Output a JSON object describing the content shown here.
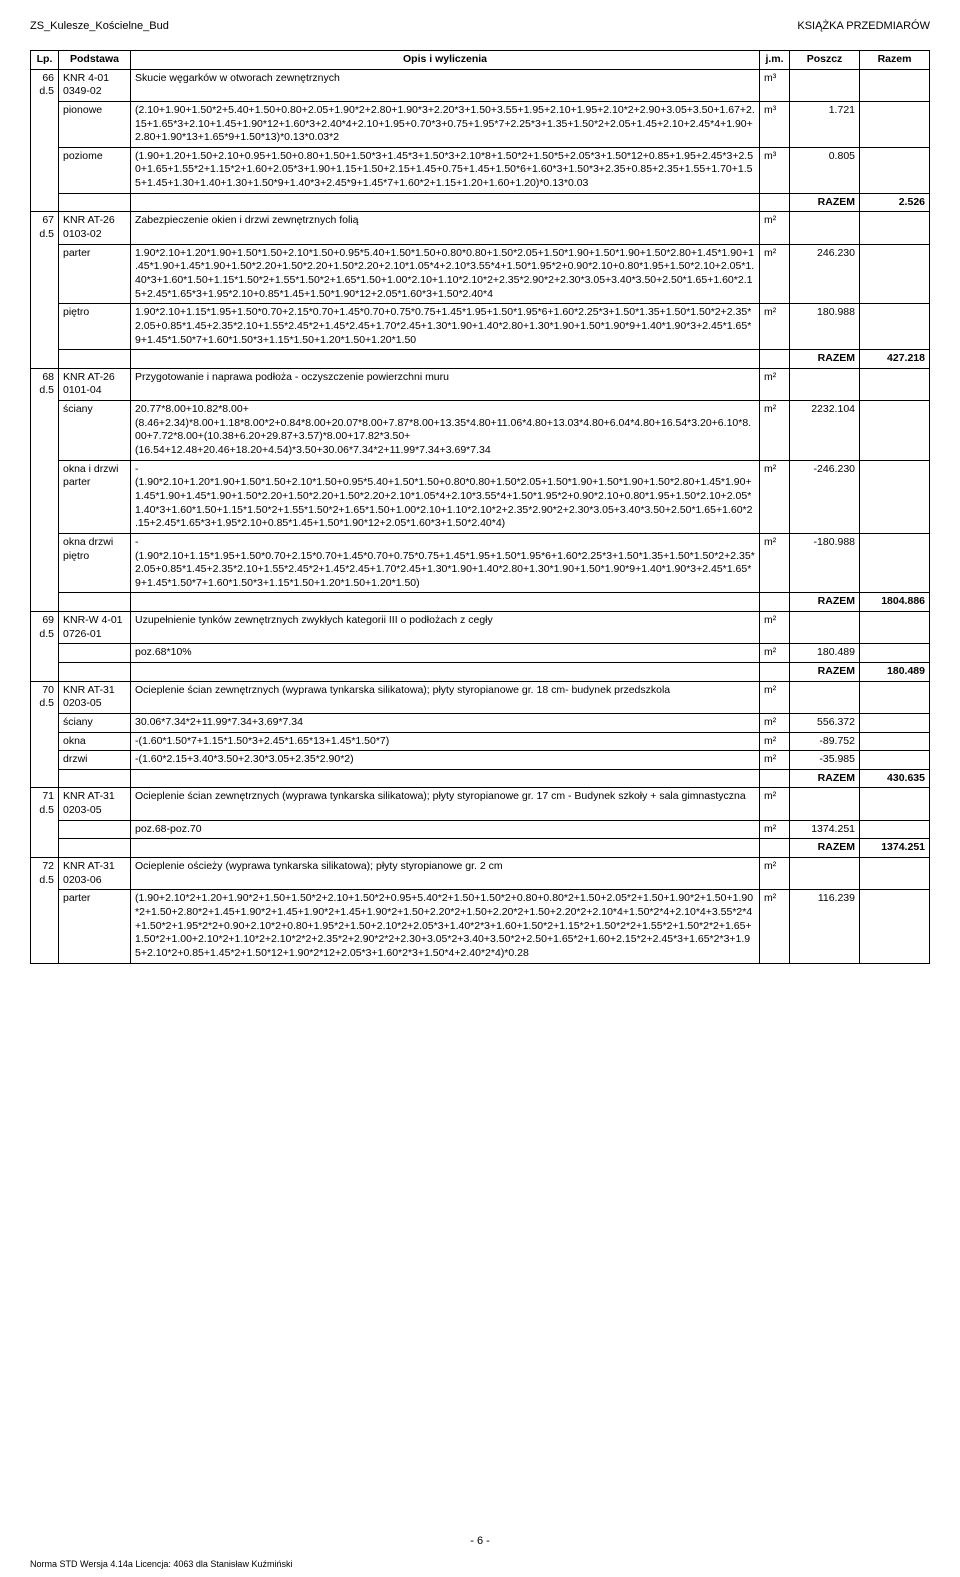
{
  "header": {
    "left": "ZS_Kulesze_Kościelne_Bud",
    "right": "KSIĄŻKA PRZEDMIARÓW"
  },
  "columns": {
    "lp": "Lp.",
    "podstawa": "Podstawa",
    "opis": "Opis i wyliczenia",
    "jm": "j.m.",
    "poszcz": "Poszcz",
    "razem": "Razem"
  },
  "rows": [
    {
      "lp": "66\nd.5",
      "podstawa": "KNR 4-01\n0349-02",
      "items": [
        {
          "label": "",
          "text": "Skucie węgarków w otworach zewnętrznych",
          "jm": "m³",
          "poszcz": "",
          "razem": ""
        },
        {
          "label": "pionowe",
          "text": "(2.10+1.90+1.50*2+5.40+1.50+0.80+2.05+1.90*2+2.80+1.90*3+2.20*3+1.50+3.55+1.95+2.10+1.95+2.10*2+2.90+3.05+3.50+1.67+2.15+1.65*3+2.10+1.45+1.90*12+1.60*3+2.40*4+2.10+1.95+0.70*3+0.75+1.95*7+2.25*3+1.35+1.50*2+2.05+1.45+2.10+2.45*4+1.90+2.80+1.90*13+1.65*9+1.50*13)*0.13*0.03*2",
          "jm": "m³",
          "poszcz": "1.721",
          "razem": ""
        },
        {
          "label": "poziome",
          "text": "(1.90+1.20+1.50+2.10+0.95+1.50+0.80+1.50+1.50*3+1.45*3+1.50*3+2.10*8+1.50*2+1.50*5+2.05*3+1.50*12+0.85+1.95+2.45*3+2.50+1.65+1.55*2+1.15*2+1.60+2.05*3+1.90+1.15+1.50+2.15+1.45+0.75+1.45+1.50*6+1.60*3+1.50*3+2.35+0.85+2.35+1.55+1.70+1.55+1.45+1.30+1.40+1.30+1.50*9+1.40*3+2.45*9+1.45*7+1.60*2+1.15+1.20+1.60+1.20)*0.13*0.03",
          "jm": "m³",
          "poszcz": "0.805",
          "razem": ""
        }
      ],
      "razem_label": "RAZEM",
      "razem_value": "2.526"
    },
    {
      "lp": "67\nd.5",
      "podstawa": "KNR AT-26\n0103-02",
      "items": [
        {
          "label": "",
          "text": "Zabezpieczenie okien i drzwi zewnętrznych folią",
          "jm": "m²",
          "poszcz": "",
          "razem": ""
        },
        {
          "label": "parter",
          "text": "1.90*2.10+1.20*1.90+1.50*1.50+2.10*1.50+0.95*5.40+1.50*1.50+0.80*0.80+1.50*2.05+1.50*1.90+1.50*1.90+1.50*2.80+1.45*1.90+1.45*1.90+1.45*1.90+1.50*2.20+1.50*2.20+1.50*2.20+2.10*1.05*4+2.10*3.55*4+1.50*1.95*2+0.90*2.10+0.80*1.95+1.50*2.10+2.05*1.40*3+1.60*1.50+1.15*1.50*2+1.55*1.50*2+1.65*1.50+1.00*2.10+1.10*2.10*2+2.35*2.90*2+2.30*3.05+3.40*3.50+2.50*1.65+1.60*2.15+2.45*1.65*3+1.95*2.10+0.85*1.45+1.50*1.90*12+2.05*1.60*3+1.50*2.40*4",
          "jm": "m²",
          "poszcz": "246.230",
          "razem": ""
        },
        {
          "label": "piętro",
          "text": "1.90*2.10+1.15*1.95+1.50*0.70+2.15*0.70+1.45*0.70+0.75*0.75+1.45*1.95+1.50*1.95*6+1.60*2.25*3+1.50*1.35+1.50*1.50*2+2.35*2.05+0.85*1.45+2.35*2.10+1.55*2.45*2+1.45*2.45+1.70*2.45+1.30*1.90+1.40*2.80+1.30*1.90+1.50*1.90*9+1.40*1.90*3+2.45*1.65*9+1.45*1.50*7+1.60*1.50*3+1.15*1.50+1.20*1.50+1.20*1.50",
          "jm": "m²",
          "poszcz": "180.988",
          "razem": ""
        }
      ],
      "razem_label": "RAZEM",
      "razem_value": "427.218"
    },
    {
      "lp": "68\nd.5",
      "podstawa": "KNR AT-26\n0101-04",
      "items": [
        {
          "label": "",
          "text": "Przygotowanie i naprawa podłoża - oczyszczenie powierzchni muru",
          "jm": "m²",
          "poszcz": "",
          "razem": ""
        },
        {
          "label": "ściany",
          "text": "20.77*8.00+10.82*8.00+(8.46+2.34)*8.00+1.18*8.00*2+0.84*8.00+20.07*8.00+7.87*8.00+13.35*4.80+11.06*4.80+13.03*4.80+6.04*4.80+16.54*3.20+6.10*8.00+7.72*8.00+(10.38+6.20+29.87+3.57)*8.00+17.82*3.50+(16.54+12.48+20.46+18.20+4.54)*3.50+30.06*7.34*2+11.99*7.34+3.69*7.34",
          "jm": "m²",
          "poszcz": "2232.104",
          "razem": ""
        },
        {
          "label": "okna i drzwi parter",
          "text": "-(1.90*2.10+1.20*1.90+1.50*1.50+2.10*1.50+0.95*5.40+1.50*1.50+0.80*0.80+1.50*2.05+1.50*1.90+1.50*1.90+1.50*2.80+1.45*1.90+1.45*1.90+1.45*1.90+1.50*2.20+1.50*2.20+1.50*2.20+2.10*1.05*4+2.10*3.55*4+1.50*1.95*2+0.90*2.10+0.80*1.95+1.50*2.10+2.05*1.40*3+1.60*1.50+1.15*1.50*2+1.55*1.50*2+1.65*1.50+1.00*2.10+1.10*2.10*2+2.35*2.90*2+2.30*3.05+3.40*3.50+2.50*1.65+1.60*2.15+2.45*1.65*3+1.95*2.10+0.85*1.45+1.50*1.90*12+2.05*1.60*3+1.50*2.40*4)",
          "jm": "m²",
          "poszcz": "-246.230",
          "razem": ""
        },
        {
          "label": "okna drzwi piętro",
          "text": "-(1.90*2.10+1.15*1.95+1.50*0.70+2.15*0.70+1.45*0.70+0.75*0.75+1.45*1.95+1.50*1.95*6+1.60*2.25*3+1.50*1.35+1.50*1.50*2+2.35*2.05+0.85*1.45+2.35*2.10+1.55*2.45*2+1.45*2.45+1.70*2.45+1.30*1.90+1.40*2.80+1.30*1.90+1.50*1.90*9+1.40*1.90*3+2.45*1.65*9+1.45*1.50*7+1.60*1.50*3+1.15*1.50+1.20*1.50+1.20*1.50)",
          "jm": "m²",
          "poszcz": "-180.988",
          "razem": ""
        }
      ],
      "razem_label": "RAZEM",
      "razem_value": "1804.886"
    },
    {
      "lp": "69\nd.5",
      "podstawa": "KNR-W 4-01\n0726-01",
      "items": [
        {
          "label": "",
          "text": "Uzupełnienie tynków zewnętrznych zwykłych kategorii III o podłożach z cegły",
          "jm": "m²",
          "poszcz": "",
          "razem": ""
        },
        {
          "label": "",
          "text": "poz.68*10%",
          "jm": "m²",
          "poszcz": "180.489",
          "razem": ""
        }
      ],
      "razem_label": "RAZEM",
      "razem_value": "180.489"
    },
    {
      "lp": "70\nd.5",
      "podstawa": "KNR AT-31\n0203-05",
      "items": [
        {
          "label": "",
          "text": "Ocieplenie ścian zewnętrznych (wyprawa tynkarska silikatowa); płyty styropianowe gr. 18 cm- budynek przedszkola",
          "jm": "m²",
          "poszcz": "",
          "razem": ""
        },
        {
          "label": "ściany",
          "text": "30.06*7.34*2+11.99*7.34+3.69*7.34",
          "jm": "m²",
          "poszcz": "556.372",
          "razem": ""
        },
        {
          "label": "okna",
          "text": "-(1.60*1.50*7+1.15*1.50*3+2.45*1.65*13+1.45*1.50*7)",
          "jm": "m²",
          "poszcz": "-89.752",
          "razem": ""
        },
        {
          "label": "drzwi",
          "text": "-(1.60*2.15+3.40*3.50+2.30*3.05+2.35*2.90*2)",
          "jm": "m²",
          "poszcz": "-35.985",
          "razem": ""
        }
      ],
      "razem_label": "RAZEM",
      "razem_value": "430.635"
    },
    {
      "lp": "71\nd.5",
      "podstawa": "KNR AT-31\n0203-05",
      "items": [
        {
          "label": "",
          "text": "Ocieplenie ścian zewnętrznych (wyprawa tynkarska silikatowa); płyty styropianowe gr. 17 cm - Budynek szkoły + sala gimnastyczna",
          "jm": "m²",
          "poszcz": "",
          "razem": ""
        },
        {
          "label": "",
          "text": "poz.68-poz.70",
          "jm": "m²",
          "poszcz": "1374.251",
          "razem": ""
        }
      ],
      "razem_label": "RAZEM",
      "razem_value": "1374.251"
    },
    {
      "lp": "72\nd.5",
      "podstawa": "KNR AT-31\n0203-06",
      "items": [
        {
          "label": "",
          "text": "Ocieplenie ościeży (wyprawa tynkarska silikatowa); płyty styropianowe gr. 2 cm",
          "jm": "m²",
          "poszcz": "",
          "razem": ""
        },
        {
          "label": "parter",
          "text": "(1.90+2.10*2+1.20+1.90*2+1.50+1.50*2+2.10+1.50*2+0.95+5.40*2+1.50+1.50*2+0.80+0.80*2+1.50+2.05*2+1.50+1.90*2+1.50+1.90*2+1.50+2.80*2+1.45+1.90*2+1.45+1.90*2+1.45+1.90*2+1.50+2.20*2+1.50+2.20*2+1.50+2.20*2+2.10*4+1.50*2*4+2.10*4+3.55*2*4+1.50*2+1.95*2*2+0.90+2.10*2+0.80+1.95*2+1.50+2.10*2+2.05*3+1.40*2*3+1.60+1.50*2+1.15*2+1.50*2*2+1.55*2+1.50*2*2+1.65+1.50*2+1.00+2.10*2+1.10*2+2.10*2*2+2.35*2+2.90*2*2+2.30+3.05*2+3.40+3.50*2+2.50+1.65*2+1.60+2.15*2+2.45*3+1.65*2*3+1.95+2.10*2+0.85+1.45*2+1.50*12+1.90*2*12+2.05*3+1.60*2*3+1.50*4+2.40*2*4)*0.28",
          "jm": "m²",
          "poszcz": "116.239",
          "razem": ""
        }
      ]
    }
  ],
  "page_number": "- 6 -",
  "footer": "Norma STD Wersja 4.14a Licencja: 4063 dla Stanisław Kuźmiński"
}
